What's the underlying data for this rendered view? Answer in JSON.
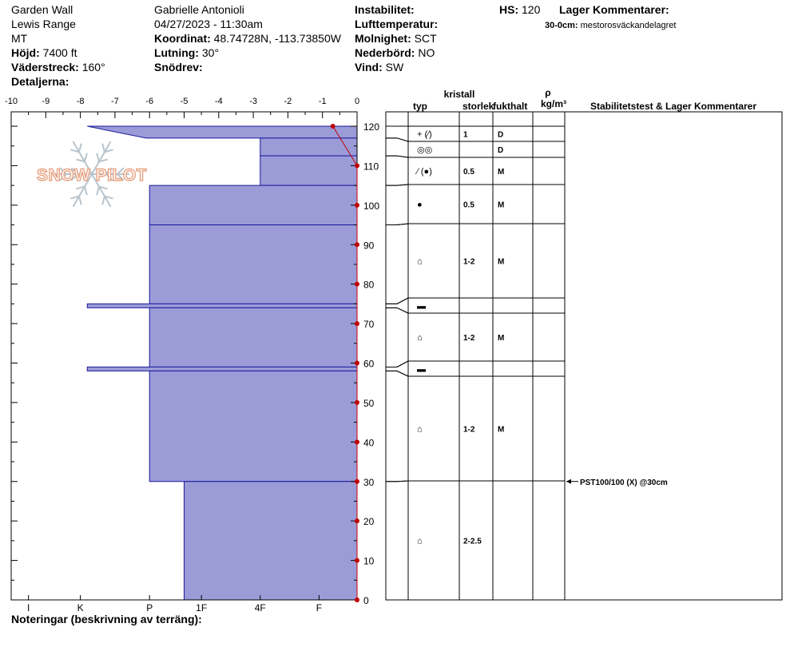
{
  "header": {
    "location": "Garden Wall",
    "range": "Lewis Range",
    "state": "MT",
    "elevation_label": "Höjd:",
    "elevation": "7400 ft",
    "aspect_label": "Väderstreck:",
    "aspect": "160°",
    "details_label": "Detaljerna:",
    "observer": "Gabrielle Antonioli",
    "datetime": "04/27/2023 - 11:30am",
    "coord_label": "Koordinat:",
    "coord": "48.74728N, -113.73850W",
    "slope_label": "Lutning:",
    "slope": "30°",
    "drift_label": "Snödrev:",
    "drift": "",
    "instability_label": "Instabilitet:",
    "instability": "",
    "airtemp_label": "Lufttemperatur:",
    "airtemp": "",
    "cloud_label": "Molnighet:",
    "cloud": "SCT",
    "precip_label": "Nederbörd:",
    "precip": "NO",
    "wind_label": "Vind:",
    "wind": "SW",
    "hs_label": "HS:",
    "hs": "120",
    "layer_comments_label": "Lager Kommentarer:",
    "layer_comment_depth": "30-0cm:",
    "layer_comment_text": "mestorosväckandelagret"
  },
  "watermark": "SNOW PILOT",
  "notes_label": "Noteringar (beskrivning av terräng):",
  "columns": {
    "crystal": "kristall",
    "type": "typ",
    "size": "storlek",
    "moisture": "fukthalt",
    "rho": "ρ",
    "density_unit": "kg/m³",
    "stability": "Stabilitetstest & Lager Kommentarer"
  },
  "stability_test": "PST100/100 (X) @30cm",
  "chart_data": {
    "type": "snow-profile",
    "temp_axis": {
      "min": -10,
      "max": 0,
      "ticks": [
        "-10",
        "-9",
        "-8",
        "-7",
        "-6",
        "-5",
        "-4",
        "-3",
        "-2",
        "-1",
        "0"
      ]
    },
    "depth_axis": {
      "min": 0,
      "max": 120,
      "ticks": [
        "0",
        "10",
        "20",
        "30",
        "40",
        "50",
        "60",
        "70",
        "80",
        "90",
        "100",
        "110",
        "120"
      ]
    },
    "hardness_labels": [
      "I",
      "K",
      "P",
      "1F",
      "4F",
      "F"
    ],
    "temperature_profile": [
      {
        "depth": 120,
        "temp": -0.7
      },
      {
        "depth": 110,
        "temp": 0
      },
      {
        "depth": 100,
        "temp": 0
      },
      {
        "depth": 90,
        "temp": 0
      },
      {
        "depth": 80,
        "temp": 0
      },
      {
        "depth": 70,
        "temp": 0
      },
      {
        "depth": 60,
        "temp": 0
      },
      {
        "depth": 50,
        "temp": 0
      },
      {
        "depth": 40,
        "temp": 0
      },
      {
        "depth": 30,
        "temp": 0
      },
      {
        "depth": 20,
        "temp": 0
      },
      {
        "depth": 10,
        "temp": 0
      },
      {
        "depth": 0,
        "temp": 0
      }
    ],
    "layers": [
      {
        "top": 120,
        "bottom": 117,
        "hardness_top": -7.8,
        "hardness_bottom": -6.1,
        "types": [
          "+",
          "(⁄)"
        ],
        "size": "1",
        "moisture": "D"
      },
      {
        "top": 117,
        "bottom": 112.5,
        "hardness": -2.8,
        "types": [
          "◎◎"
        ],
        "size": "",
        "moisture": "D"
      },
      {
        "top": 112.5,
        "bottom": 105,
        "hardness": -2.8,
        "types": [
          "⁄",
          "(●)"
        ],
        "size": "0.5",
        "moisture": "M"
      },
      {
        "top": 105,
        "bottom": 95,
        "hardness": -6,
        "types": [
          "●"
        ],
        "size": "0.5",
        "moisture": "M"
      },
      {
        "top": 95,
        "bottom": 75,
        "hardness": -6,
        "types": [
          "⌂"
        ],
        "size": "1-2",
        "moisture": "M"
      },
      {
        "top": 75,
        "bottom": 74,
        "hardness": -7.8,
        "types": [
          "▬"
        ],
        "size": "",
        "moisture": ""
      },
      {
        "top": 74,
        "bottom": 59,
        "hardness": -6,
        "types": [
          "⌂"
        ],
        "size": "1-2",
        "moisture": "M"
      },
      {
        "top": 59,
        "bottom": 58,
        "hardness": -7.8,
        "types": [
          "▬"
        ],
        "size": "",
        "moisture": ""
      },
      {
        "top": 58,
        "bottom": 30,
        "hardness": -6,
        "types": [
          "⌂"
        ],
        "size": "1-2",
        "moisture": "M"
      },
      {
        "top": 30,
        "bottom": 0,
        "hardness": -5,
        "types": [
          "⌂"
        ],
        "size": "2-2.5",
        "moisture": ""
      }
    ]
  }
}
